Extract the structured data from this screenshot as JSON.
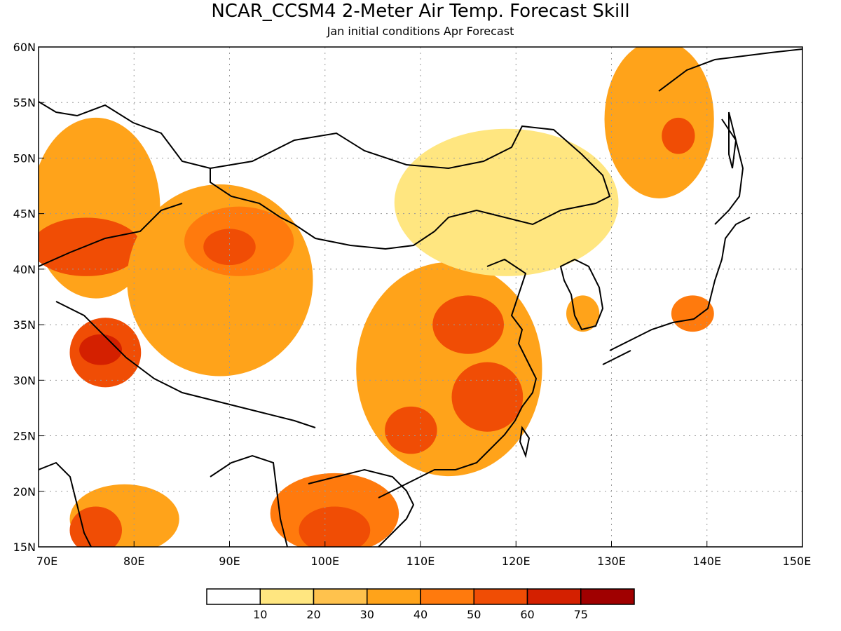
{
  "title": "NCAR_CCSM4 2-Meter Air Temp. Forecast Skill",
  "subtitle": "Jan initial conditions  Apr Forecast",
  "map": {
    "lon_range": [
      70,
      150
    ],
    "lat_range": [
      15,
      60
    ],
    "grid": true,
    "x_ticks": [
      "70E",
      "80E",
      "90E",
      "100E",
      "110E",
      "120E",
      "130E",
      "140E",
      "150E"
    ],
    "y_ticks": [
      "15N",
      "20N",
      "25N",
      "30N",
      "35N",
      "40N",
      "45N",
      "50N",
      "55N",
      "60N"
    ]
  },
  "colorbar": {
    "labels": [
      "10",
      "20",
      "30",
      "40",
      "50",
      "60",
      "75"
    ],
    "colors": [
      "#ffffff",
      "#ffe680",
      "#ffc24d",
      "#ffa31a",
      "#ff7a0d",
      "#f04d05",
      "#d42000",
      "#a00000"
    ]
  },
  "chart_data": {
    "type": "heatmap",
    "title": "NCAR_CCSM4 2-Meter Air Temp. Forecast Skill",
    "subtitle": "Jan initial conditions  Apr Forecast",
    "x_range": [
      70,
      150
    ],
    "y_range": [
      15,
      60
    ],
    "levels": [
      10,
      20,
      30,
      40,
      50,
      60,
      75
    ],
    "regions": [
      {
        "lon": [
          70,
          82
        ],
        "lat": [
          38,
          53
        ],
        "skill": 30
      },
      {
        "lon": [
          70,
          80
        ],
        "lat": [
          40,
          44
        ],
        "skill": 50
      },
      {
        "lon": [
          80,
          98
        ],
        "lat": [
          31,
          47
        ],
        "skill": 30
      },
      {
        "lon": [
          86,
          96
        ],
        "lat": [
          40,
          45
        ],
        "skill": 40
      },
      {
        "lon": [
          88,
          92
        ],
        "lat": [
          41,
          43
        ],
        "skill": 50
      },
      {
        "lon": [
          74,
          80
        ],
        "lat": [
          30,
          35
        ],
        "skill": 50
      },
      {
        "lon": [
          75,
          78
        ],
        "lat": [
          32,
          33.5
        ],
        "skill": 60
      },
      {
        "lon": [
          104,
          122
        ],
        "lat": [
          22,
          40
        ],
        "skill": 30
      },
      {
        "lon": [
          112,
          118
        ],
        "lat": [
          33,
          37
        ],
        "skill": 50
      },
      {
        "lon": [
          114,
          120
        ],
        "lat": [
          26,
          31
        ],
        "skill": 50
      },
      {
        "lon": [
          107,
          111
        ],
        "lat": [
          24,
          27
        ],
        "skill": 50
      },
      {
        "lon": [
          95,
          107
        ],
        "lat": [
          15,
          21
        ],
        "skill": 40
      },
      {
        "lon": [
          98,
          104
        ],
        "lat": [
          15,
          18
        ],
        "skill": 50
      },
      {
        "lon": [
          74,
          84
        ],
        "lat": [
          15,
          20
        ],
        "skill": 30
      },
      {
        "lon": [
          74,
          78
        ],
        "lat": [
          15,
          18
        ],
        "skill": 50
      },
      {
        "lon": [
          108,
          130
        ],
        "lat": [
          40,
          52
        ],
        "skill": 10
      },
      {
        "lon": [
          130,
          140
        ],
        "lat": [
          47,
          60
        ],
        "skill": 30
      },
      {
        "lon": [
          136,
          138
        ],
        "lat": [
          51,
          53
        ],
        "skill": 50
      },
      {
        "lon": [
          137,
          140
        ],
        "lat": [
          35,
          37
        ],
        "skill": 40
      },
      {
        "lon": [
          126,
          128
        ],
        "lat": [
          35,
          37
        ],
        "skill": 30
      }
    ]
  }
}
